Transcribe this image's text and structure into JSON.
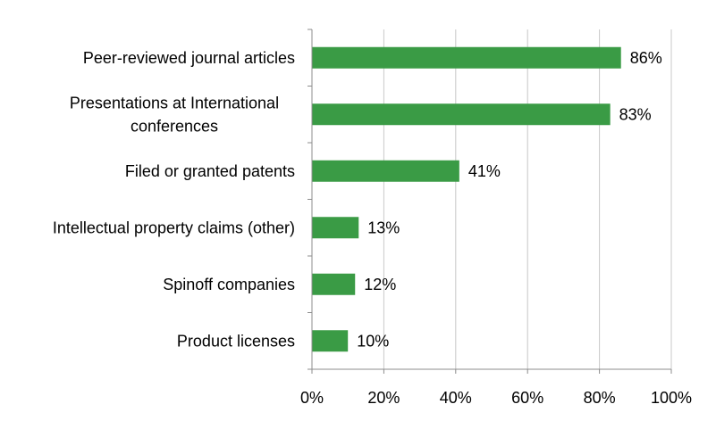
{
  "chart_data": {
    "type": "bar",
    "orientation": "horizontal",
    "categories": [
      "Peer-reviewed journal articles",
      "Presentations at International conferences",
      "Filed or granted patents",
      "Intellectual property claims (other)",
      "Spinoff companies",
      "Product licenses"
    ],
    "category_lines": [
      [
        "Peer-reviewed journal articles"
      ],
      [
        "Presentations at International",
        "conferences"
      ],
      [
        "Filed or granted patents"
      ],
      [
        "Intellectual property claims (other)"
      ],
      [
        "Spinoff companies"
      ],
      [
        "Product licenses"
      ]
    ],
    "values": [
      86,
      83,
      41,
      13,
      12,
      10
    ],
    "data_labels": [
      "86%",
      "83%",
      "41%",
      "13%",
      "12%",
      "10%"
    ],
    "xlim": [
      0,
      100
    ],
    "ticks": [
      0,
      20,
      40,
      60,
      80,
      100
    ],
    "tick_labels": [
      "0%",
      "20%",
      "40%",
      "60%",
      "80%",
      "100%"
    ],
    "title": "",
    "xlabel": "",
    "ylabel": "",
    "grid": "vertical",
    "legend": "none",
    "colors": {
      "bar": "#3a9b45",
      "grid": "#c8c8c8",
      "axis": "#8c8c8c",
      "text": "#000000"
    }
  }
}
